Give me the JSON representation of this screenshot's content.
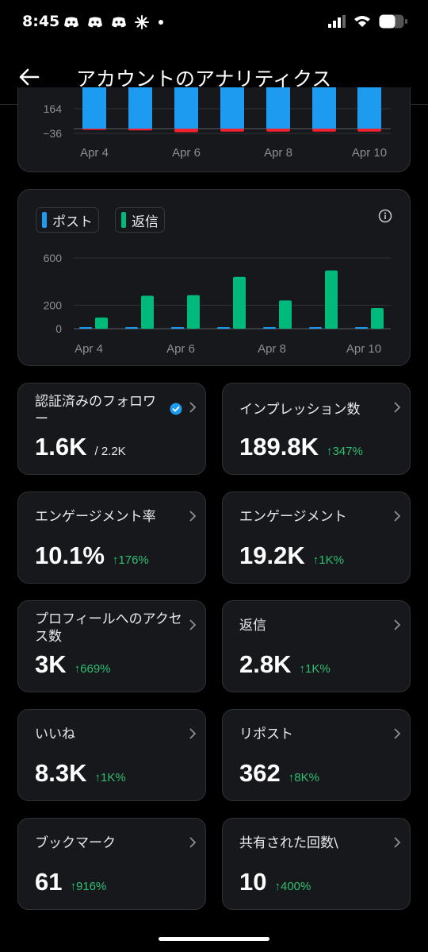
{
  "status": {
    "time": "8:45",
    "left_icons": [
      "discord-icon",
      "discord-icon",
      "discord-icon",
      "spark-icon",
      "dot-icon"
    ],
    "right_icons": [
      "signal-icon",
      "wifi-icon",
      "battery-icon"
    ]
  },
  "header": {
    "title": "アカウントのアナリティクス",
    "back_icon": "back-arrow-icon"
  },
  "colors": {
    "blue": "#1d9bf0",
    "red": "#f4212e",
    "green": "#00ba7c",
    "delta_green": "#2fbf71"
  },
  "chart_data": [
    {
      "type": "bar",
      "ticks_y": [
        "164",
        "−36"
      ],
      "ticks_x": [
        "Apr 4",
        "Apr 6",
        "Apr 8",
        "Apr 10"
      ],
      "series": [
        {
          "values": [
            164,
            164,
            164,
            164,
            164,
            164,
            164
          ]
        },
        {
          "values": [
            -2,
            -3,
            -6,
            -5,
            -5,
            -5,
            -5
          ]
        }
      ],
      "colors": [
        "#1d9bf0",
        "#f4212e"
      ]
    },
    {
      "type": "bar",
      "ticks_y": [
        "600",
        "200",
        "0"
      ],
      "ticks_x": [
        "Apr 4",
        "Apr 6",
        "Apr 8",
        "Apr 10"
      ],
      "ylim": [
        0,
        600
      ],
      "series": [
        {
          "name": "ポスト",
          "values": [
            3,
            5,
            3,
            4,
            3,
            2,
            4
          ]
        },
        {
          "name": "返信",
          "values": [
            95,
            280,
            285,
            440,
            240,
            495,
            175
          ]
        }
      ],
      "colors": [
        "#1d9bf0",
        "#00ba7c"
      ]
    }
  ],
  "chart2": {
    "info_icon": "info-icon"
  },
  "stats": [
    {
      "label": "認証済みのフォロワー",
      "value": "1.6K",
      "sub": "/ 2.2K",
      "delta": ""
    },
    {
      "label": "インプレッション数",
      "value": "189.8K",
      "sub": "",
      "delta": "↑347%"
    },
    {
      "label": "エンゲージメント率",
      "value": "10.1%",
      "sub": "",
      "delta": "↑176%"
    },
    {
      "label": "エンゲージメント",
      "value": "19.2K",
      "sub": "",
      "delta": "↑1K%"
    },
    {
      "label": "プロフィールへのアクセス数",
      "value": "3K",
      "sub": "",
      "delta": "↑669%"
    },
    {
      "label": "返信",
      "value": "2.8K",
      "sub": "",
      "delta": "↑1K%"
    },
    {
      "label": "いいね",
      "value": "8.3K",
      "sub": "",
      "delta": "↑1K%"
    },
    {
      "label": "リポスト",
      "value": "362",
      "sub": "",
      "delta": "↑8K%"
    },
    {
      "label": "ブックマーク",
      "value": "61",
      "sub": "",
      "delta": "↑916%"
    },
    {
      "label": "共有された回数\\",
      "value": "10",
      "sub": "",
      "delta": "↑400%"
    }
  ]
}
